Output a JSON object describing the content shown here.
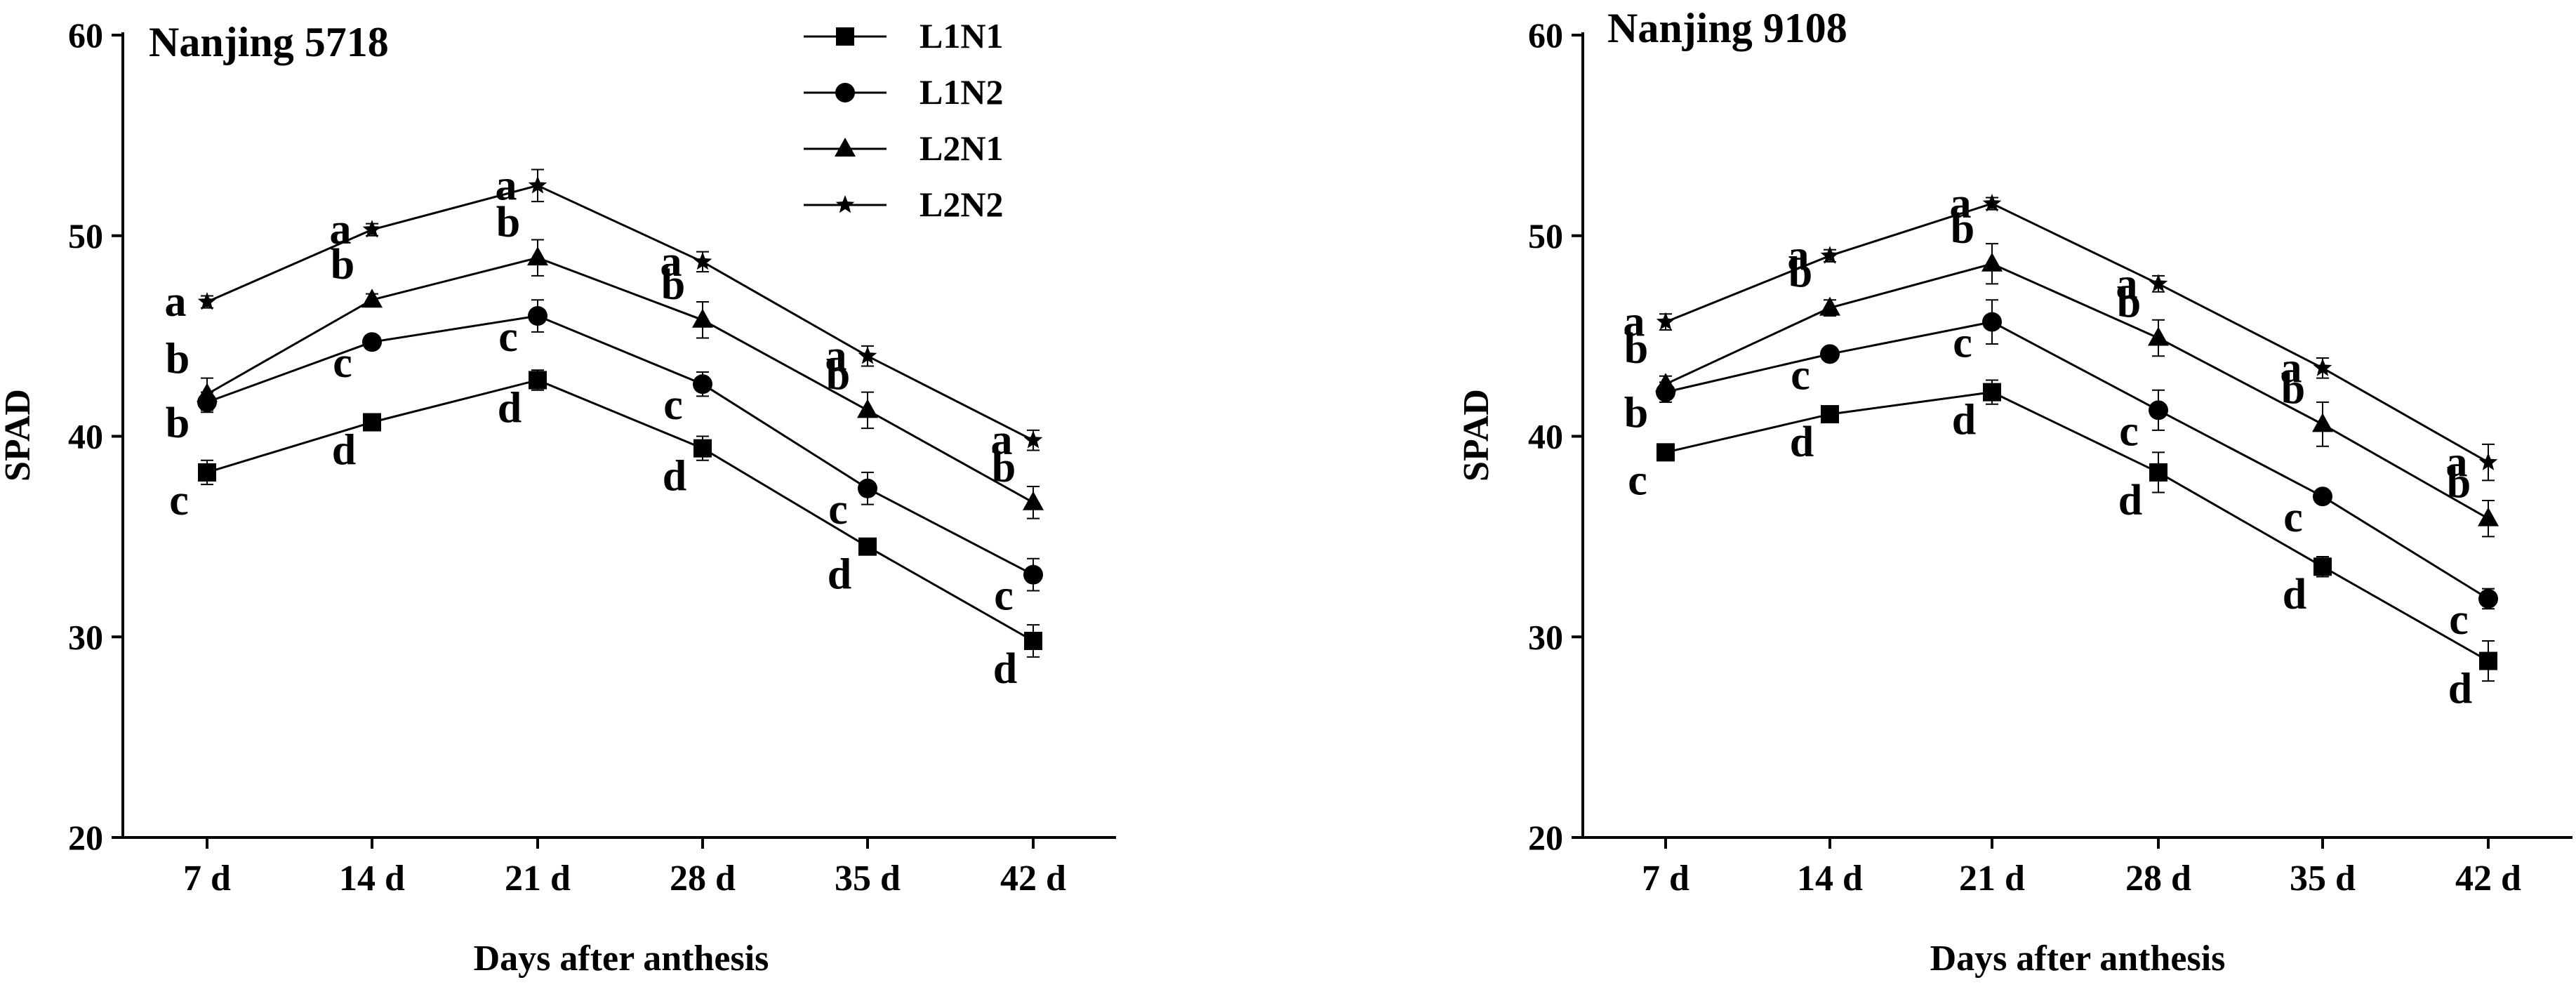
{
  "figure": {
    "legend": {
      "placement": "top-right of first panel"
    }
  },
  "chart_data": [
    {
      "type": "line",
      "title": "Nanjing 5718",
      "xlabel": "Days after anthesis",
      "ylabel": "SPAD",
      "categories": [
        "7 d",
        "14 d",
        "21 d",
        "28 d",
        "35 d",
        "42 d"
      ],
      "ylim": [
        20,
        60
      ],
      "yticks": [
        20,
        30,
        40,
        50,
        60
      ],
      "grid": false,
      "legend": true,
      "series": [
        {
          "name": "L1N1",
          "marker": "square",
          "values": [
            38.2,
            40.7,
            42.8,
            39.4,
            34.5,
            29.8
          ],
          "errors": [
            0.6,
            0.3,
            0.5,
            0.6,
            0.4,
            0.8
          ],
          "letters": [
            "c",
            "d",
            "d",
            "d",
            "d",
            "d"
          ]
        },
        {
          "name": "L1N2",
          "marker": "circle",
          "values": [
            41.7,
            44.7,
            46.0,
            42.6,
            37.4,
            33.1
          ],
          "errors": [
            0.5,
            0.3,
            0.8,
            0.6,
            0.8,
            0.8
          ],
          "letters": [
            "b",
            "c",
            "c",
            "c",
            "c",
            "c"
          ]
        },
        {
          "name": "L2N1",
          "marker": "triangle",
          "values": [
            42.1,
            46.8,
            48.9,
            45.8,
            41.3,
            36.7
          ],
          "errors": [
            0.8,
            0.3,
            0.9,
            0.9,
            0.9,
            0.8
          ],
          "letters": [
            "b",
            "b",
            "b",
            "b",
            "b",
            "b"
          ]
        },
        {
          "name": "L2N2",
          "marker": "star",
          "values": [
            46.7,
            50.3,
            52.5,
            48.7,
            44.0,
            39.8
          ],
          "errors": [
            0.3,
            0.3,
            0.8,
            0.5,
            0.5,
            0.5
          ],
          "letters": [
            "a",
            "a",
            "a",
            "a",
            "a",
            "a"
          ]
        }
      ]
    },
    {
      "type": "line",
      "title": "Nanjing 9108",
      "xlabel": "Days after anthesis",
      "ylabel": "SPAD",
      "categories": [
        "7 d",
        "14 d",
        "21 d",
        "28 d",
        "35 d",
        "42 d"
      ],
      "ylim": [
        20,
        60
      ],
      "yticks": [
        20,
        30,
        40,
        50,
        60
      ],
      "grid": false,
      "legend": false,
      "series": [
        {
          "name": "L1N1",
          "marker": "square",
          "values": [
            39.2,
            41.1,
            42.2,
            38.2,
            33.5,
            28.8
          ],
          "errors": [
            0.3,
            0.3,
            0.6,
            1.0,
            0.5,
            1.0
          ],
          "letters": [
            "c",
            "d",
            "d",
            "d",
            "d",
            "d"
          ]
        },
        {
          "name": "L1N2",
          "marker": "circle",
          "values": [
            42.2,
            44.1,
            45.7,
            41.3,
            37.0,
            31.9
          ],
          "errors": [
            0.5,
            0.3,
            1.1,
            1.0,
            0.3,
            0.5
          ],
          "letters": [
            "b",
            "c",
            "c",
            "c",
            "c",
            "c"
          ]
        },
        {
          "name": "L2N1",
          "marker": "triangle",
          "values": [
            42.6,
            46.4,
            48.6,
            44.9,
            40.6,
            35.9
          ],
          "errors": [
            0.4,
            0.4,
            1.0,
            0.9,
            1.1,
            0.9
          ],
          "letters": [
            "b",
            "b",
            "b",
            "b",
            "b",
            "b"
          ]
        },
        {
          "name": "L2N2",
          "marker": "star",
          "values": [
            45.7,
            49.0,
            51.6,
            47.6,
            43.4,
            38.7
          ],
          "errors": [
            0.4,
            0.3,
            0.3,
            0.4,
            0.5,
            0.9
          ],
          "letters": [
            "a",
            "a",
            "a",
            "a",
            "a",
            "a"
          ]
        }
      ]
    }
  ]
}
